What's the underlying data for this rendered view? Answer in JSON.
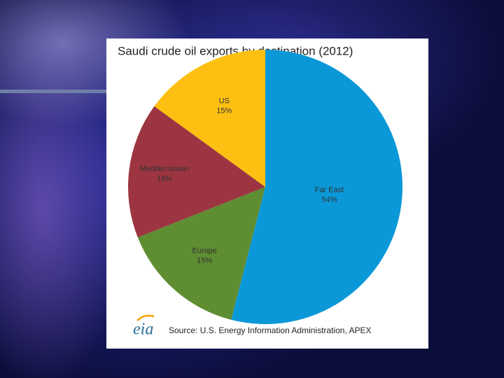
{
  "chart_data": {
    "type": "pie",
    "title": "Saudi crude oil exports by destination (2012)",
    "categories": [
      "Far East",
      "Europe",
      "Mediterranean",
      "US"
    ],
    "values": [
      54,
      15,
      16,
      15
    ],
    "value_labels": [
      "54%",
      "15%",
      "16%",
      "15%"
    ],
    "colors": [
      "#0a98d8",
      "#5e8d32",
      "#9c3541",
      "#fdc012"
    ],
    "logo": "eia",
    "source": "Source: U.S. Energy Information Administration, APEX"
  }
}
